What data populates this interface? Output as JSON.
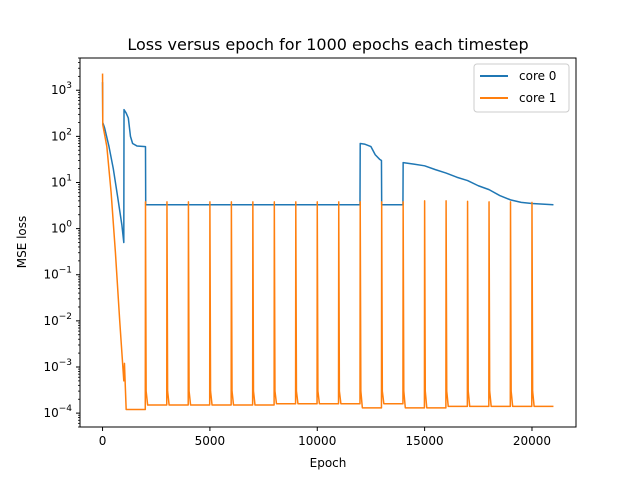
{
  "chart_data": {
    "type": "line",
    "title": "Loss versus epoch for 1000 epochs each timestep",
    "xlabel": "Epoch",
    "ylabel": "MSE loss",
    "xlim": [
      -1050,
      22050
    ],
    "ylim": [
      5e-05,
      5000
    ],
    "yscale": "log",
    "grid": false,
    "legend_position": "top-right",
    "x_ticks": [
      0,
      5000,
      10000,
      15000,
      20000
    ],
    "x_tick_labels": [
      "0",
      "5000",
      "10000",
      "15000",
      "20000"
    ],
    "y_ticks": [
      0.0001,
      0.001,
      0.01,
      0.1,
      1,
      10,
      100,
      1000
    ],
    "y_tick_labels": [
      {
        "base": "10",
        "exp": "−4"
      },
      {
        "base": "10",
        "exp": "−3"
      },
      {
        "base": "10",
        "exp": "−2"
      },
      {
        "base": "10",
        "exp": "−1"
      },
      {
        "base": "10",
        "exp": "0"
      },
      {
        "base": "10",
        "exp": "1"
      },
      {
        "base": "10",
        "exp": "2"
      },
      {
        "base": "10",
        "exp": "3"
      }
    ],
    "series": [
      {
        "name": "core 0",
        "color": "#1f77b4",
        "points": [
          [
            0,
            1500
          ],
          [
            10,
            200
          ],
          [
            100,
            150
          ],
          [
            300,
            60
          ],
          [
            500,
            20
          ],
          [
            700,
            5
          ],
          [
            900,
            1.2
          ],
          [
            990,
            0.5
          ],
          [
            1000,
            380
          ],
          [
            1100,
            320
          ],
          [
            1200,
            250
          ],
          [
            1300,
            100
          ],
          [
            1400,
            70
          ],
          [
            1600,
            62
          ],
          [
            2000,
            60
          ],
          [
            2010,
            3.3
          ],
          [
            11990,
            3.3
          ],
          [
            12000,
            70
          ],
          [
            12200,
            68
          ],
          [
            12500,
            60
          ],
          [
            12700,
            40
          ],
          [
            12900,
            32
          ],
          [
            12990,
            30
          ],
          [
            13000,
            3.3
          ],
          [
            13990,
            3.3
          ],
          [
            14000,
            27
          ],
          [
            14500,
            25
          ],
          [
            15000,
            23
          ],
          [
            15500,
            19
          ],
          [
            16000,
            16
          ],
          [
            16500,
            13
          ],
          [
            17000,
            11
          ],
          [
            17500,
            8.5
          ],
          [
            18000,
            7
          ],
          [
            18500,
            5.2
          ],
          [
            19000,
            4.2
          ],
          [
            19500,
            3.7
          ],
          [
            20000,
            3.5
          ],
          [
            21000,
            3.3
          ]
        ]
      },
      {
        "name": "core 1",
        "color": "#ff7f0e",
        "points": [
          [
            0,
            2300
          ],
          [
            10,
            180
          ],
          [
            200,
            60
          ],
          [
            400,
            6
          ],
          [
            600,
            0.3
          ],
          [
            800,
            0.01
          ],
          [
            990,
            0.0005
          ],
          [
            1000,
            0.0006
          ],
          [
            1020,
            0.0012
          ],
          [
            1100,
            0.00012
          ],
          [
            1990,
            0.00012
          ],
          [
            2000,
            3.8
          ],
          [
            2030,
            0.0003
          ],
          [
            2100,
            0.00015
          ],
          [
            2990,
            0.00015
          ],
          [
            3000,
            3.8
          ],
          [
            3030,
            0.0003
          ],
          [
            3100,
            0.00015
          ],
          [
            3990,
            0.00015
          ],
          [
            4000,
            3.8
          ],
          [
            4030,
            0.0003
          ],
          [
            4100,
            0.00015
          ],
          [
            4990,
            0.00015
          ],
          [
            5000,
            3.8
          ],
          [
            5030,
            0.0003
          ],
          [
            5100,
            0.00015
          ],
          [
            5990,
            0.00015
          ],
          [
            6000,
            3.8
          ],
          [
            6030,
            0.0003
          ],
          [
            6100,
            0.00015
          ],
          [
            6990,
            0.00015
          ],
          [
            7000,
            3.8
          ],
          [
            7030,
            0.0003
          ],
          [
            7100,
            0.00015
          ],
          [
            7990,
            0.00015
          ],
          [
            8000,
            3.8
          ],
          [
            8030,
            0.0003
          ],
          [
            8100,
            0.00016
          ],
          [
            8990,
            0.00016
          ],
          [
            9000,
            3.8
          ],
          [
            9030,
            0.0003
          ],
          [
            9100,
            0.00016
          ],
          [
            9990,
            0.00016
          ],
          [
            10000,
            3.8
          ],
          [
            10030,
            0.0003
          ],
          [
            10100,
            0.00016
          ],
          [
            10990,
            0.00016
          ],
          [
            11000,
            3.8
          ],
          [
            11030,
            0.0003
          ],
          [
            11100,
            0.00016
          ],
          [
            11990,
            0.00016
          ],
          [
            12000,
            3.8
          ],
          [
            12030,
            0.0003
          ],
          [
            12100,
            0.00013
          ],
          [
            12990,
            0.00013
          ],
          [
            13000,
            3.8
          ],
          [
            13030,
            0.0003
          ],
          [
            13100,
            0.00016
          ],
          [
            13990,
            0.00016
          ],
          [
            14000,
            3.8
          ],
          [
            14030,
            0.0003
          ],
          [
            14100,
            0.00013
          ],
          [
            14990,
            0.00013
          ],
          [
            15000,
            4.0
          ],
          [
            15030,
            0.0003
          ],
          [
            15100,
            0.00013
          ],
          [
            15990,
            0.00013
          ],
          [
            16000,
            4.0
          ],
          [
            16030,
            0.0003
          ],
          [
            16100,
            0.00014
          ],
          [
            16990,
            0.00014
          ],
          [
            17000,
            3.9
          ],
          [
            17030,
            0.0003
          ],
          [
            17100,
            0.00014
          ],
          [
            17990,
            0.00014
          ],
          [
            18000,
            3.8
          ],
          [
            18030,
            0.0003
          ],
          [
            18100,
            0.00014
          ],
          [
            18990,
            0.00014
          ],
          [
            19000,
            3.8
          ],
          [
            19030,
            0.0003
          ],
          [
            19100,
            0.00014
          ],
          [
            19990,
            0.00014
          ],
          [
            20000,
            3.7
          ],
          [
            20030,
            0.0003
          ],
          [
            20100,
            0.00014
          ],
          [
            21000,
            0.00014
          ]
        ]
      }
    ]
  }
}
